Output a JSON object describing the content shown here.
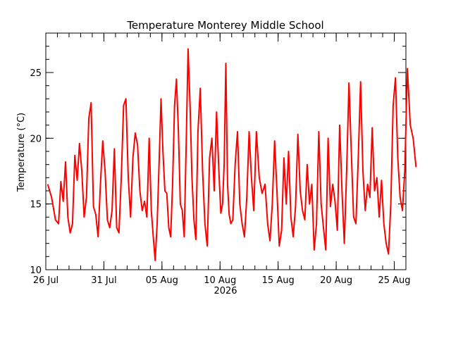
{
  "chart_data": {
    "type": "line",
    "title": "Temperature Monterey Middle School",
    "ylabel": "Temperature (°C)",
    "xlabel": "",
    "year_label": "2026",
    "ylim": [
      10,
      28
    ],
    "y_ticks": [
      10,
      15,
      20,
      25
    ],
    "y_minor_step": 1,
    "x_range": [
      "2026-07-26",
      "2026-08-26"
    ],
    "x_tick_labels": [
      {
        "date": "2026-07-26",
        "label": "26 Jul"
      },
      {
        "date": "2026-07-31",
        "label": "31 Jul"
      },
      {
        "date": "2026-08-05",
        "label": "05 Aug"
      },
      {
        "date": "2026-08-10",
        "label": "10 Aug"
      },
      {
        "date": "2026-08-15",
        "label": "15 Aug"
      },
      {
        "date": "2026-08-20",
        "label": "20 Aug"
      },
      {
        "date": "2026-08-25",
        "label": "25 Aug"
      }
    ],
    "grid": false,
    "series": [
      {
        "color": "#ff0000",
        "points": [
          [
            "2026-07-26",
            16.5
          ],
          [
            "2026-07-26",
            15.5
          ],
          [
            "2026-07-26",
            13.8
          ],
          [
            "2026-07-27",
            13.5
          ],
          [
            "2026-07-27",
            16.7
          ],
          [
            "2026-07-27",
            15.2
          ],
          [
            "2026-07-27",
            18.2
          ],
          [
            "2026-07-27",
            14.0
          ],
          [
            "2026-07-28",
            12.8
          ],
          [
            "2026-07-28",
            13.5
          ],
          [
            "2026-07-28",
            18.7
          ],
          [
            "2026-07-28",
            16.8
          ],
          [
            "2026-07-28",
            19.6
          ],
          [
            "2026-07-29",
            17.5
          ],
          [
            "2026-07-29",
            14.0
          ],
          [
            "2026-07-29",
            15.5
          ],
          [
            "2026-07-29",
            21.5
          ],
          [
            "2026-07-29",
            22.7
          ],
          [
            "2026-07-30",
            14.8
          ],
          [
            "2026-07-30",
            14.2
          ],
          [
            "2026-07-30",
            12.5
          ],
          [
            "2026-07-30",
            16.5
          ],
          [
            "2026-07-30",
            19.8
          ],
          [
            "2026-07-31",
            17.5
          ],
          [
            "2026-07-31",
            13.8
          ],
          [
            "2026-07-31",
            13.2
          ],
          [
            "2026-07-31",
            14.5
          ],
          [
            "2026-07-31",
            19.2
          ],
          [
            "2026-08-01",
            13.2
          ],
          [
            "2026-08-01",
            12.8
          ],
          [
            "2026-08-01",
            17.0
          ],
          [
            "2026-08-01",
            22.5
          ],
          [
            "2026-08-01",
            23.0
          ],
          [
            "2026-08-02",
            17.0
          ],
          [
            "2026-08-02",
            14.0
          ],
          [
            "2026-08-02",
            18.5
          ],
          [
            "2026-08-02",
            20.4
          ],
          [
            "2026-08-02",
            19.5
          ],
          [
            "2026-08-03",
            16.0
          ],
          [
            "2026-08-03",
            14.5
          ],
          [
            "2026-08-03",
            15.2
          ],
          [
            "2026-08-03",
            14.0
          ],
          [
            "2026-08-03",
            20.0
          ],
          [
            "2026-08-04",
            14.5
          ],
          [
            "2026-08-04",
            12.5
          ],
          [
            "2026-08-04",
            10.7
          ],
          [
            "2026-08-04",
            13.5
          ],
          [
            "2026-08-04",
            18.0
          ],
          [
            "2026-08-04",
            23.0
          ],
          [
            "2026-08-05",
            19.0
          ],
          [
            "2026-08-05",
            16.0
          ],
          [
            "2026-08-05",
            15.8
          ],
          [
            "2026-08-05",
            13.2
          ],
          [
            "2026-08-05",
            12.5
          ],
          [
            "2026-08-05",
            16.5
          ],
          [
            "2026-08-06",
            22.5
          ],
          [
            "2026-08-06",
            24.5
          ],
          [
            "2026-08-06",
            20.5
          ],
          [
            "2026-08-06",
            15.0
          ],
          [
            "2026-08-06",
            14.5
          ],
          [
            "2026-08-06",
            12.5
          ],
          [
            "2026-08-07",
            19.5
          ],
          [
            "2026-08-07",
            26.8
          ],
          [
            "2026-08-07",
            22.5
          ],
          [
            "2026-08-07",
            17.0
          ],
          [
            "2026-08-07",
            13.8
          ],
          [
            "2026-08-07",
            12.3
          ],
          [
            "2026-08-08",
            20.5
          ],
          [
            "2026-08-08",
            23.8
          ],
          [
            "2026-08-08",
            17.5
          ],
          [
            "2026-08-08",
            13.5
          ],
          [
            "2026-08-08",
            11.8
          ],
          [
            "2026-08-09",
            18.5
          ],
          [
            "2026-08-09",
            20.0
          ],
          [
            "2026-08-09",
            16.0
          ],
          [
            "2026-08-09",
            22.0
          ],
          [
            "2026-08-09",
            17.5
          ],
          [
            "2026-08-10",
            14.3
          ],
          [
            "2026-08-10",
            15.0
          ],
          [
            "2026-08-10",
            18.0
          ],
          [
            "2026-08-10",
            25.7
          ],
          [
            "2026-08-10",
            16.5
          ],
          [
            "2026-08-10",
            14.2
          ],
          [
            "2026-08-10",
            13.5
          ],
          [
            "2026-08-11",
            13.8
          ],
          [
            "2026-08-11",
            18.0
          ],
          [
            "2026-08-11",
            20.5
          ],
          [
            "2026-08-11",
            15.0
          ],
          [
            "2026-08-11",
            13.5
          ],
          [
            "2026-08-12",
            12.5
          ],
          [
            "2026-08-12",
            15.5
          ],
          [
            "2026-08-12",
            20.5
          ],
          [
            "2026-08-12",
            17.0
          ],
          [
            "2026-08-12",
            14.5
          ],
          [
            "2026-08-13",
            20.5
          ],
          [
            "2026-08-13",
            17.0
          ],
          [
            "2026-08-13",
            15.8
          ],
          [
            "2026-08-13",
            16.5
          ],
          [
            "2026-08-14",
            13.5
          ],
          [
            "2026-08-14",
            12.2
          ],
          [
            "2026-08-14",
            15.0
          ],
          [
            "2026-08-14",
            19.8
          ],
          [
            "2026-08-14",
            16.0
          ],
          [
            "2026-08-15",
            11.8
          ],
          [
            "2026-08-15",
            13.0
          ],
          [
            "2026-08-15",
            18.5
          ],
          [
            "2026-08-15",
            15.0
          ],
          [
            "2026-08-15",
            19.0
          ],
          [
            "2026-08-16",
            14.0
          ],
          [
            "2026-08-16",
            12.5
          ],
          [
            "2026-08-16",
            14.8
          ],
          [
            "2026-08-16",
            20.3
          ],
          [
            "2026-08-16",
            16.0
          ],
          [
            "2026-08-17",
            14.5
          ],
          [
            "2026-08-17",
            13.8
          ],
          [
            "2026-08-17",
            18.0
          ],
          [
            "2026-08-17",
            15.0
          ],
          [
            "2026-08-17",
            16.5
          ],
          [
            "2026-08-18",
            11.5
          ],
          [
            "2026-08-18",
            13.5
          ],
          [
            "2026-08-18",
            20.5
          ],
          [
            "2026-08-18",
            15.0
          ],
          [
            "2026-08-18",
            13.2
          ],
          [
            "2026-08-19",
            11.5
          ],
          [
            "2026-08-19",
            20.0
          ],
          [
            "2026-08-19",
            14.8
          ],
          [
            "2026-08-19",
            16.5
          ],
          [
            "2026-08-19",
            15.2
          ],
          [
            "2026-08-20",
            13.0
          ],
          [
            "2026-08-20",
            21.0
          ],
          [
            "2026-08-20",
            16.0
          ],
          [
            "2026-08-20",
            12.0
          ],
          [
            "2026-08-20",
            17.5
          ],
          [
            "2026-08-21",
            24.2
          ],
          [
            "2026-08-21",
            19.0
          ],
          [
            "2026-08-21",
            14.0
          ],
          [
            "2026-08-21",
            13.5
          ],
          [
            "2026-08-21",
            18.5
          ],
          [
            "2026-08-22",
            24.3
          ],
          [
            "2026-08-22",
            17.5
          ],
          [
            "2026-08-22",
            14.5
          ],
          [
            "2026-08-22",
            16.5
          ],
          [
            "2026-08-22",
            15.5
          ],
          [
            "2026-08-23",
            20.8
          ],
          [
            "2026-08-23",
            16.0
          ],
          [
            "2026-08-23",
            17.0
          ],
          [
            "2026-08-23",
            14.0
          ],
          [
            "2026-08-23",
            16.8
          ],
          [
            "2026-08-24",
            13.5
          ],
          [
            "2026-08-24",
            12.0
          ],
          [
            "2026-08-24",
            11.2
          ],
          [
            "2026-08-24",
            15.0
          ],
          [
            "2026-08-24",
            22.5
          ],
          [
            "2026-08-25",
            24.6
          ],
          [
            "2026-08-25",
            18.5
          ],
          [
            "2026-08-25",
            15.5
          ],
          [
            "2026-08-25",
            14.5
          ],
          [
            "2026-08-25",
            17.5
          ],
          [
            "2026-08-26",
            25.3
          ],
          [
            "2026-08-26",
            21.0
          ],
          [
            "2026-08-26",
            20.0
          ],
          [
            "2026-08-26",
            17.8
          ]
        ]
      }
    ]
  }
}
